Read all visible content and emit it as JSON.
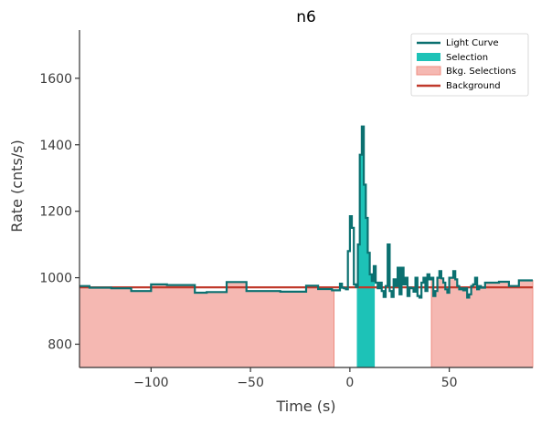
{
  "chart_data": {
    "type": "line",
    "title": "n6",
    "xlabel": "Time (s)",
    "ylabel": "Rate (cnts/s)",
    "xlim": [
      -136,
      92
    ],
    "ylim": [
      730,
      1745
    ],
    "xticks": [
      -100,
      -50,
      0,
      50
    ],
    "xtick_labels": [
      "−100",
      "−50",
      "0",
      "50"
    ],
    "yticks": [
      800,
      1000,
      1200,
      1400,
      1600
    ],
    "ytick_labels": [
      "800",
      "1000",
      "1200",
      "1400",
      "1600"
    ],
    "grid": false,
    "legend_position": "top-right",
    "colors": {
      "light_curve": "#0b7070",
      "selection": "#1dc2b7",
      "bkg_selection_fill": "#f5b8b2",
      "bkg_selection_edge": "#ee8c80",
      "background": "#c0392b",
      "axis": "#333333"
    },
    "series": [
      {
        "name": "Light Curve",
        "kind": "step",
        "x": [
          -136,
          -131,
          -120,
          -110,
          -100,
          -92,
          -78,
          -72,
          -62,
          -52,
          -35,
          -22,
          -16,
          -9,
          -5,
          -4,
          -3,
          -2,
          -1,
          0,
          1,
          2,
          3,
          4,
          5,
          6,
          7,
          8,
          9,
          10,
          11,
          12,
          13,
          14,
          15,
          16,
          17,
          18,
          19,
          20,
          21,
          22,
          23,
          24,
          25,
          26,
          27,
          28,
          29,
          30,
          31,
          32,
          33,
          34,
          35,
          36,
          37,
          38,
          39,
          40,
          41,
          42,
          43,
          44,
          45,
          46,
          47,
          48,
          49,
          50,
          51,
          52,
          53,
          54,
          55,
          56,
          57,
          58,
          59,
          60,
          61,
          62,
          63,
          64,
          65,
          66,
          68,
          70,
          75,
          80,
          85,
          92
        ],
        "y": [
          975,
          970,
          968,
          960,
          980,
          978,
          955,
          957,
          987,
          960,
          958,
          976,
          966,
          962,
          982,
          970,
          968,
          965,
          1080,
          1185,
          1150,
          980,
          972,
          1100,
          1370,
          1455,
          1280,
          1180,
          1075,
          1010,
          990,
          1035,
          985,
          968,
          985,
          960,
          942,
          975,
          1100,
          960,
          942,
          995,
          975,
          1030,
          950,
          1030,
          980,
          1000,
          945,
          970,
          968,
          958,
          1000,
          945,
          940,
          985,
          1000,
          960,
          1010,
          995,
          1000,
          945,
          960,
          1000,
          1020,
          998,
          985,
          965,
          955,
          1000,
          1000,
          1020,
          995,
          975,
          965,
          968,
          962,
          968,
          940,
          950,
          975,
          980,
          1000,
          965,
          975,
          970,
          985,
          985,
          988,
          975,
          992,
          992
        ]
      },
      {
        "name": "Selection",
        "kind": "filled-step",
        "x_range": [
          3.5,
          12.5
        ]
      },
      {
        "name": "Bkg. Selections",
        "kind": "filled-step",
        "x_ranges": [
          [
            -136,
            -8
          ],
          [
            41,
            92
          ]
        ]
      },
      {
        "name": "Background",
        "kind": "line",
        "y": 971
      }
    ],
    "legend": [
      "Light Curve",
      "Selection",
      "Bkg. Selections",
      "Background"
    ]
  }
}
